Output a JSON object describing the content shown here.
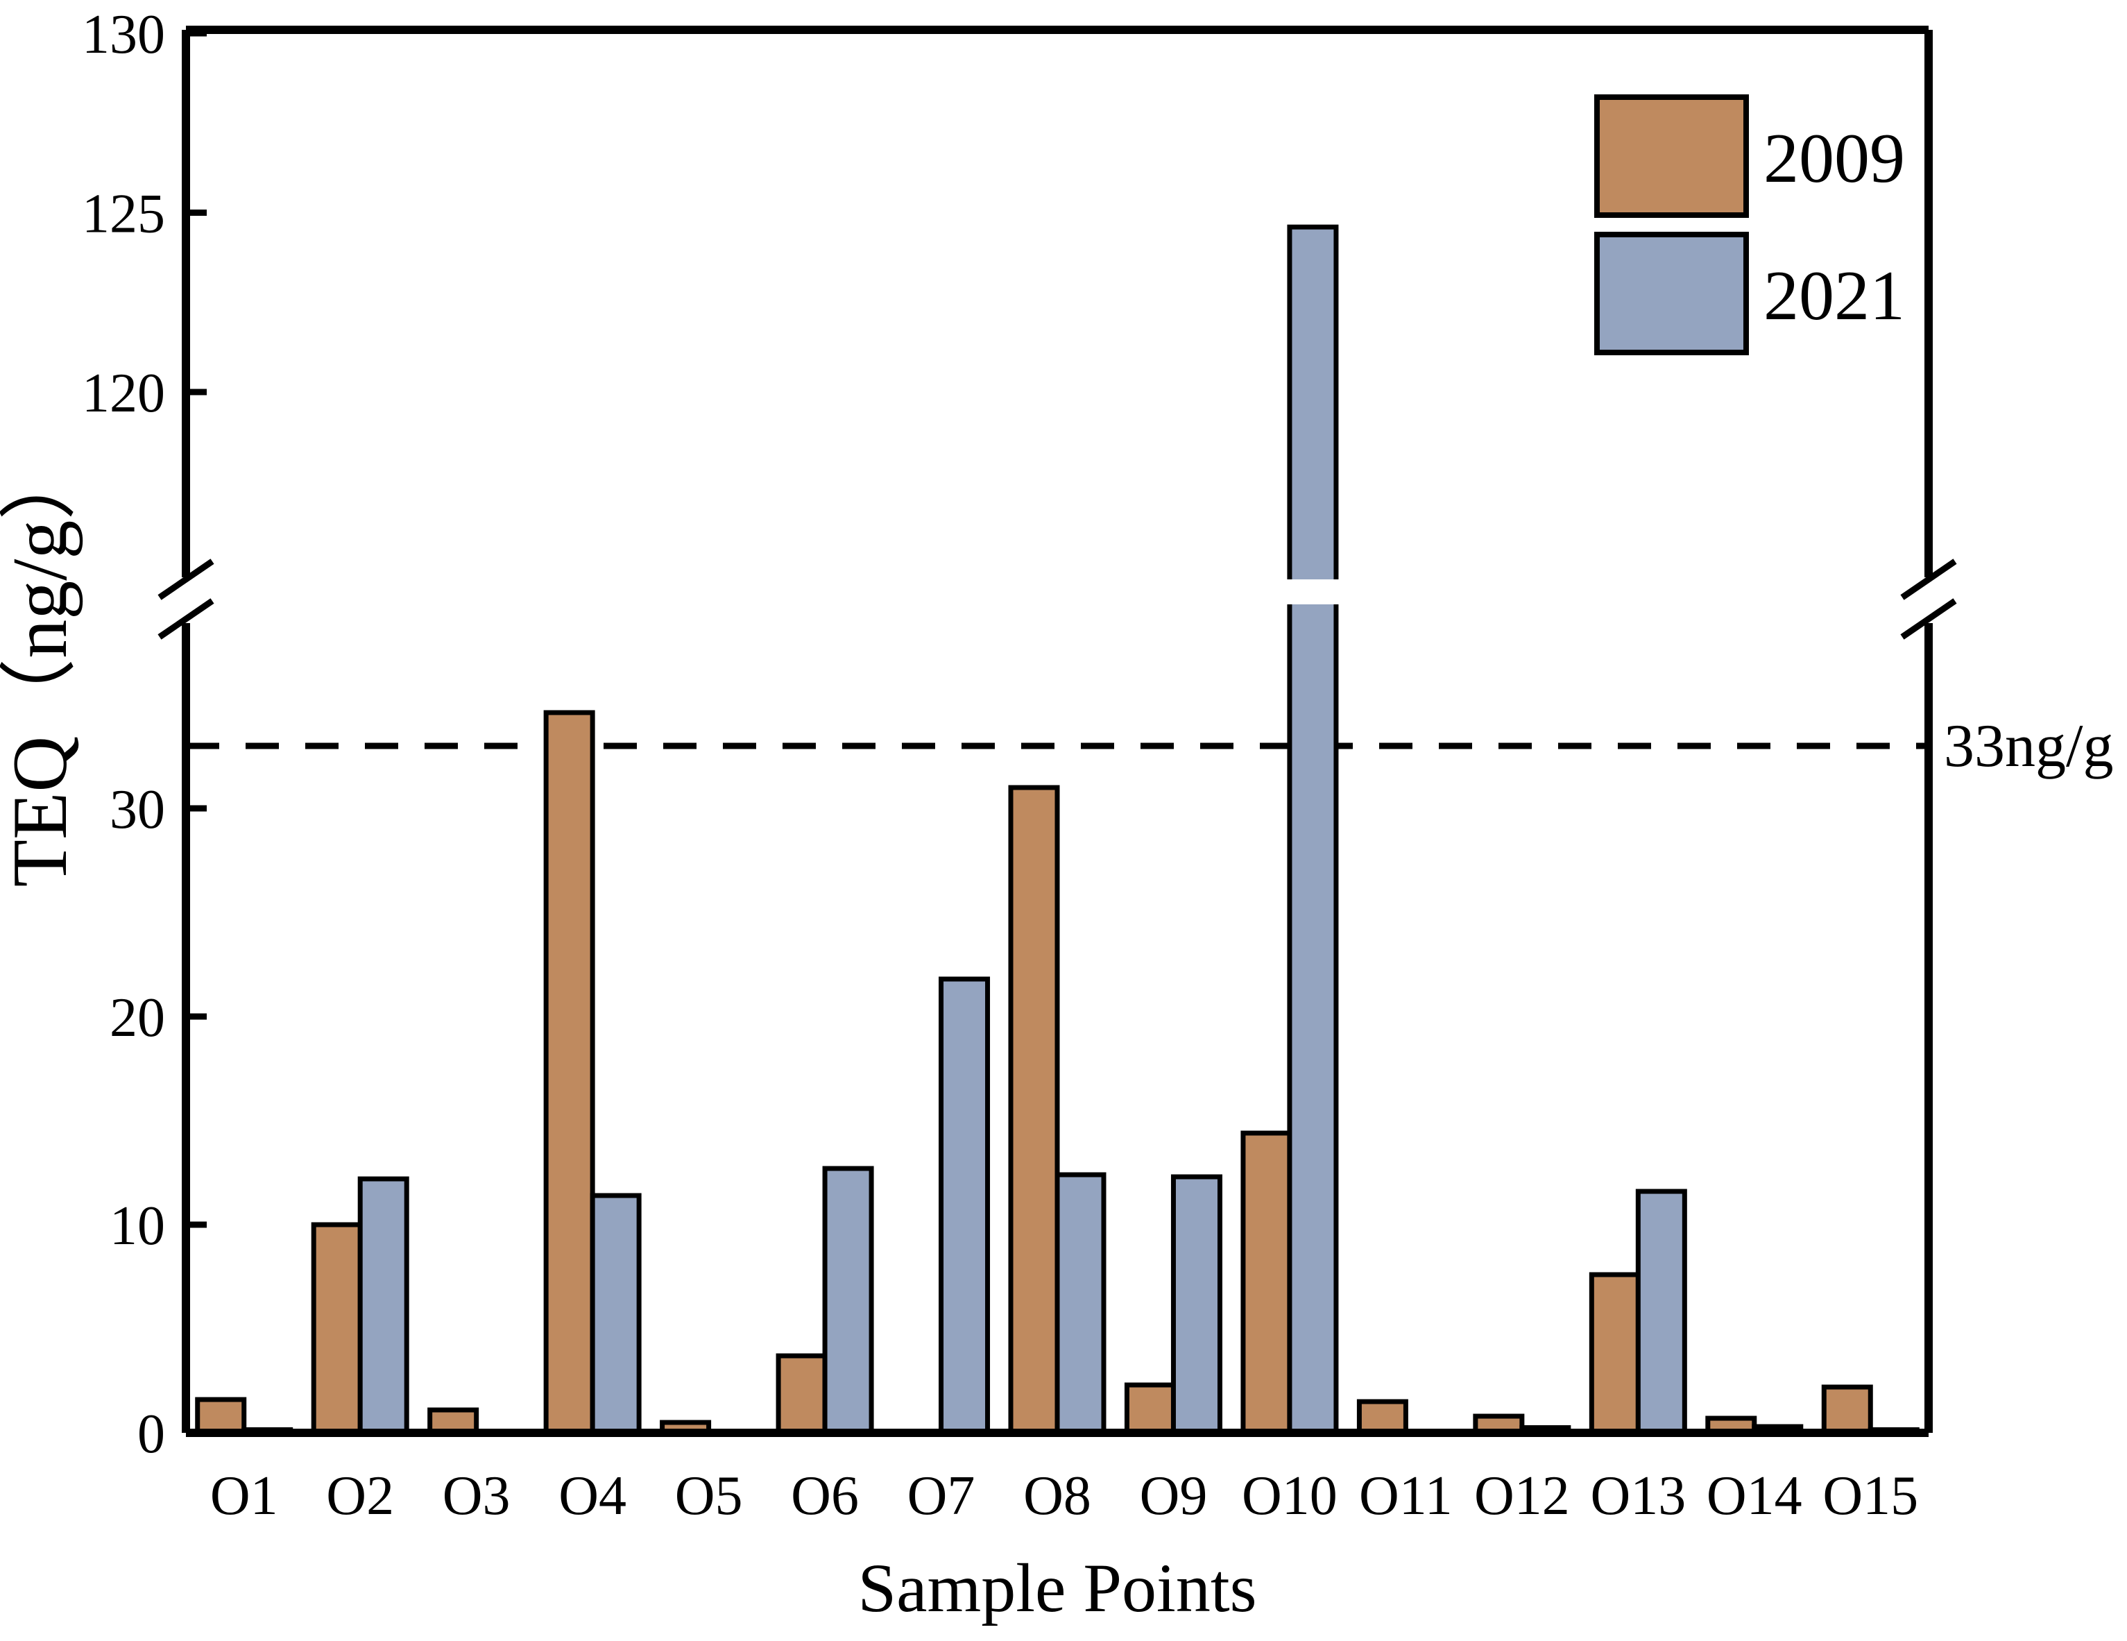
{
  "chart_data": {
    "type": "bar",
    "title": "",
    "xlabel": "Sample Points",
    "ylabel": "TEQ（ng/g）",
    "categories": [
      "O1",
      "O2",
      "O3",
      "O4",
      "O5",
      "O6",
      "O7",
      "O8",
      "O9",
      "O10",
      "O11",
      "O12",
      "O13",
      "O14",
      "O15"
    ],
    "series": [
      {
        "name": "2009",
        "color": "#bf8a5f",
        "values": [
          1.6,
          10.0,
          1.1,
          34.6,
          0.5,
          3.7,
          0,
          31.0,
          2.3,
          14.4,
          1.5,
          0.8,
          7.6,
          0.7,
          2.2
        ]
      },
      {
        "name": "2021",
        "color": "#94a4c0",
        "values": [
          0.15,
          12.2,
          0,
          11.4,
          0,
          12.7,
          21.8,
          12.4,
          12.3,
          124.6,
          0,
          0.25,
          11.6,
          0.3,
          0.15
        ]
      }
    ],
    "threshold": {
      "value": 33,
      "label": "33ng/g"
    },
    "y_axis": {
      "lower_ticks": [
        0,
        10,
        20,
        30
      ],
      "upper_ticks": [
        120,
        125,
        130
      ],
      "axis_break": true,
      "lower_segment_max": 38,
      "upper_segment_min": 114
    },
    "x_axis_ticks": [
      "O1",
      "O2",
      "O3",
      "O4",
      "O5",
      "O6",
      "O7",
      "O8",
      "O9",
      "O10",
      "O11",
      "O12",
      "O13",
      "O14",
      "O15"
    ],
    "legend_position": "top-right",
    "grid": false,
    "bar_border_color": "#000000",
    "axis_color": "#000000",
    "background_color": "#ffffff"
  }
}
